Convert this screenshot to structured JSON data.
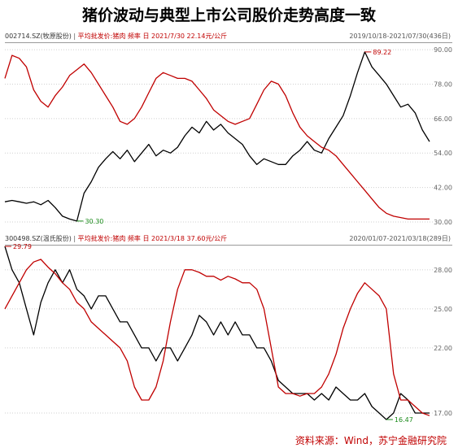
{
  "title": "猪价波动与典型上市公司股价走势高度一致",
  "source": "资料来源：Wind，苏宁金融研究院",
  "colors": {
    "stock_line": "#000000",
    "price_line": "#c00000",
    "grid": "#cfcfcf",
    "min_label": "#1a8a1a",
    "max_label": "#c00000"
  },
  "chart_data": [
    {
      "type": "line",
      "stock": "002714.SZ(牧原股份)",
      "indicator": "平均批发价:猪肉 频率 日 2021/7/30 22.14元/公斤",
      "range": "2019/10/18-2021/07/30(436日)",
      "ylim": [
        28,
        92
      ],
      "yticks": [
        "30.00",
        "42.00",
        "54.00",
        "66.00",
        "78.00",
        "90.00"
      ],
      "max_label": "89.22",
      "min_label": "30.30",
      "n": 60,
      "series": [
        {
          "name": "002714.SZ(牧原股份)",
          "values": [
            37,
            37.5,
            37,
            36.5,
            37,
            36,
            37.5,
            35,
            32,
            31,
            30.3,
            40,
            44,
            49,
            52,
            54.5,
            52,
            55,
            51,
            54,
            57,
            53,
            55,
            54,
            56,
            60,
            63,
            61,
            65,
            62,
            64,
            61,
            59,
            57,
            53,
            50,
            52,
            51,
            50,
            50,
            53,
            55,
            58,
            55,
            54,
            59,
            63,
            67,
            74,
            82,
            89.2,
            84,
            81,
            78,
            74,
            70,
            71,
            68,
            62,
            58
          ]
        },
        {
          "name": "平均批发价:猪肉",
          "values": [
            80,
            88,
            87,
            84,
            76,
            72,
            70,
            74,
            77,
            81,
            83,
            85,
            82,
            78,
            74,
            70,
            65,
            64,
            66,
            70,
            75,
            80,
            82,
            81,
            80,
            80,
            79,
            76,
            73,
            69,
            67,
            65,
            64,
            65,
            66,
            71,
            76,
            79,
            78,
            74,
            68,
            63,
            60,
            58,
            56,
            55,
            53,
            50,
            47,
            44,
            41,
            38,
            35,
            33,
            32,
            31.5,
            31,
            31,
            31,
            31
          ]
        }
      ]
    },
    {
      "type": "line",
      "stock": "300498.SZ(温氏股份)",
      "indicator": "平均批发价:猪肉 频率 日 2021/3/18 37.60元/公斤",
      "range": "2020/01/07-2021/03/18(289日)",
      "ylim": [
        16,
        29.8
      ],
      "yticks": [
        "17.00",
        "22.00",
        "25.00",
        "28.00"
      ],
      "max_label": "29.79",
      "min_label": "16.47",
      "n": 60,
      "series": [
        {
          "name": "300498.SZ(温氏股份)",
          "values": [
            29.8,
            28,
            27,
            25,
            23,
            25.5,
            27,
            28,
            27,
            28,
            26.5,
            26,
            25,
            26,
            26,
            25,
            24,
            24,
            23,
            22,
            22,
            21,
            22,
            22,
            21,
            22,
            23,
            24.5,
            24,
            23,
            24,
            23,
            24,
            23,
            23,
            22,
            22,
            21,
            19.5,
            19,
            18.5,
            18.5,
            18.5,
            18,
            18.5,
            18,
            19,
            18.5,
            18,
            18,
            18.5,
            17.5,
            17,
            16.5,
            17,
            18.5,
            18,
            17,
            17,
            17
          ]
        },
        {
          "name": "平均批发价:猪肉",
          "values": [
            25,
            26,
            27,
            28,
            28.6,
            28.8,
            28.2,
            27.7,
            27,
            26.5,
            25.5,
            25,
            24,
            23.5,
            23,
            22.5,
            22,
            21,
            19,
            18,
            18,
            19,
            21,
            24,
            26.5,
            28,
            28,
            27.8,
            27.5,
            27.5,
            27.2,
            27.5,
            27.3,
            27,
            27,
            26.5,
            25,
            22,
            19,
            18.5,
            18.5,
            18.3,
            18.5,
            18.5,
            19,
            20,
            21.5,
            23.5,
            25,
            26.2,
            27,
            26.5,
            26,
            25,
            20,
            18,
            18,
            17.5,
            17,
            16.8
          ]
        }
      ]
    }
  ]
}
